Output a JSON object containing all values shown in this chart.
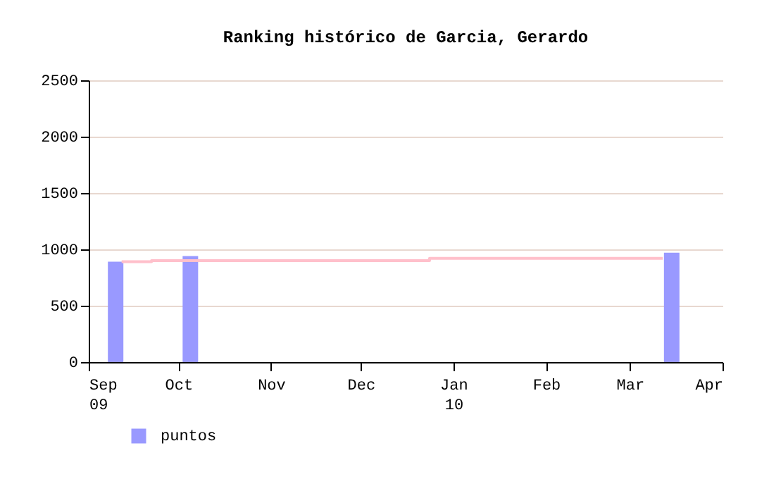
{
  "chart_data": {
    "type": "bar",
    "title": "Ranking histórico de Garcia, Gerardo",
    "series": [
      {
        "name": "puntos",
        "color": "#9999ff",
        "x": [
          "2009-09-10",
          "2009-10-05",
          "2010-03-15"
        ],
        "values": [
          890,
          940,
          970
        ]
      },
      {
        "type": "step",
        "color": "#ffc0cb",
        "x": [
          "2009-09-12",
          "2009-09-22",
          "2009-12-24",
          "2010-03-12"
        ],
        "values": [
          890,
          900,
          920,
          920
        ]
      }
    ],
    "xlim": [
      "2009-09-01",
      "2010-04-01"
    ],
    "xticks": [
      {
        "value": "2009-09-01",
        "label": "Sep 09"
      },
      {
        "value": "2009-10-01",
        "label": "Oct"
      },
      {
        "value": "2009-11-01",
        "label": "Nov"
      },
      {
        "value": "2009-12-01",
        "label": "Dec"
      },
      {
        "value": "2010-01-01",
        "label": "Jan 10"
      },
      {
        "value": "2010-02-01",
        "label": "Feb"
      },
      {
        "value": "2010-03-01",
        "label": "Mar"
      },
      {
        "value": "2010-04-01",
        "label": "Apr"
      }
    ],
    "ylim": [
      0,
      2500
    ],
    "yticks": [
      0,
      500,
      1000,
      1500,
      2000,
      2500
    ],
    "grid": "y",
    "legend": "bottom left"
  }
}
